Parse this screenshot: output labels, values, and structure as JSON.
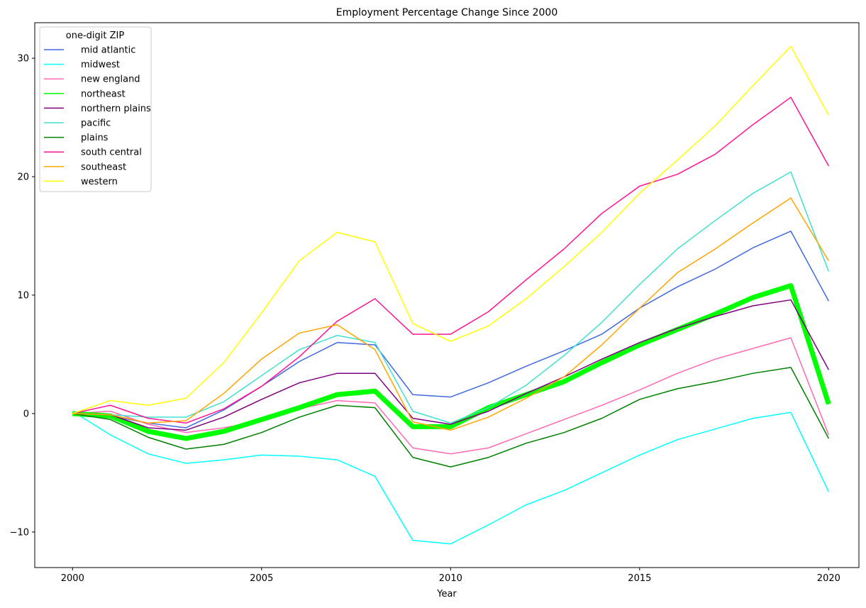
{
  "chart_data": {
    "type": "line",
    "title": "Employment Percentage Change Since 2000",
    "xlabel": "Year",
    "ylabel": "",
    "xlim": [
      1999.0,
      2020.8
    ],
    "ylim": [
      -13.0,
      33.0
    ],
    "xticks": [
      2000,
      2005,
      2010,
      2015,
      2020
    ],
    "yticks": [
      -10,
      0,
      10,
      20,
      30
    ],
    "grid": false,
    "legend": {
      "title": "one-digit ZIP",
      "position": "top-left"
    },
    "x": [
      2000,
      2001,
      2002,
      2003,
      2004,
      2005,
      2006,
      2007,
      2008,
      2009,
      2010,
      2011,
      2012,
      2013,
      2014,
      2015,
      2016,
      2017,
      2018,
      2019,
      2020
    ],
    "series": [
      {
        "name": "mid atlantic",
        "color": "#4169e1",
        "width": 1.5,
        "values": [
          0,
          -0.2,
          -0.8,
          -1.2,
          0.3,
          2.3,
          4.4,
          6.0,
          5.8,
          1.6,
          1.4,
          2.6,
          4.0,
          5.3,
          6.7,
          8.9,
          10.7,
          12.2,
          14.0,
          15.4,
          9.5
        ]
      },
      {
        "name": "midwest",
        "color": "#00ffff",
        "width": 1.5,
        "values": [
          0.2,
          -1.8,
          -3.4,
          -4.2,
          -3.9,
          -3.5,
          -3.6,
          -3.9,
          -5.3,
          -10.7,
          -11.0,
          -9.4,
          -7.7,
          -6.5,
          -5.0,
          -3.5,
          -2.2,
          -1.3,
          -0.4,
          0.1,
          -6.6
        ]
      },
      {
        "name": "new england",
        "color": "#ff69b4",
        "width": 1.5,
        "values": [
          0,
          0.2,
          -0.9,
          -1.6,
          -1.2,
          -0.6,
          0.4,
          1.1,
          0.9,
          -2.9,
          -3.4,
          -2.9,
          -1.7,
          -0.5,
          0.7,
          2.0,
          3.4,
          4.6,
          5.5,
          6.4,
          -1.8
        ]
      },
      {
        "name": "northeast",
        "color": "#00ff00",
        "width": 7,
        "values": [
          0,
          -0.2,
          -1.5,
          -2.1,
          -1.5,
          -0.5,
          0.5,
          1.6,
          1.9,
          -1.1,
          -1.1,
          0.5,
          1.6,
          2.7,
          4.3,
          5.8,
          7.1,
          8.4,
          9.8,
          10.8,
          0.8
        ]
      },
      {
        "name": "northern plains",
        "color": "#800080",
        "width": 1.5,
        "values": [
          0,
          -0.1,
          -1.2,
          -1.4,
          -0.3,
          1.2,
          2.6,
          3.4,
          3.4,
          -0.4,
          -0.9,
          0.2,
          1.7,
          3.1,
          4.6,
          6.0,
          7.2,
          8.2,
          9.1,
          9.6,
          3.7
        ]
      },
      {
        "name": "pacific",
        "color": "#40e0d0",
        "width": 1.5,
        "values": [
          0,
          -0.1,
          -0.3,
          -0.3,
          1.0,
          3.2,
          5.4,
          6.6,
          6.0,
          0.2,
          -0.8,
          0.5,
          2.4,
          4.9,
          7.7,
          10.9,
          13.9,
          16.3,
          18.6,
          20.4,
          12.0
        ]
      },
      {
        "name": "plains",
        "color": "#008000",
        "width": 1.5,
        "values": [
          0,
          -0.5,
          -2.0,
          -3.0,
          -2.6,
          -1.6,
          -0.3,
          0.7,
          0.5,
          -3.7,
          -4.5,
          -3.7,
          -2.5,
          -1.6,
          -0.4,
          1.2,
          2.1,
          2.7,
          3.4,
          3.9,
          -2.1
        ]
      },
      {
        "name": "south central",
        "color": "#ff1493",
        "width": 1.5,
        "values": [
          0,
          0.7,
          -0.4,
          -0.8,
          0.4,
          2.3,
          4.8,
          7.8,
          9.7,
          6.7,
          6.7,
          8.6,
          11.3,
          13.9,
          16.9,
          19.2,
          20.2,
          21.9,
          24.4,
          26.7,
          20.9
        ]
      },
      {
        "name": "southeast",
        "color": "#ffa500",
        "width": 1.5,
        "values": [
          0,
          -0.1,
          -0.8,
          -0.6,
          1.7,
          4.6,
          6.8,
          7.5,
          5.4,
          -0.7,
          -1.4,
          -0.3,
          1.3,
          3.1,
          5.8,
          8.9,
          11.9,
          13.9,
          16.1,
          18.2,
          12.9
        ]
      },
      {
        "name": "western",
        "color": "#ffff00",
        "width": 1.5,
        "values": [
          0,
          1.1,
          0.7,
          1.3,
          4.3,
          8.5,
          12.9,
          15.3,
          14.5,
          7.6,
          6.1,
          7.4,
          9.7,
          12.4,
          15.3,
          18.6,
          21.4,
          24.3,
          27.7,
          31.0,
          25.2
        ]
      }
    ]
  }
}
